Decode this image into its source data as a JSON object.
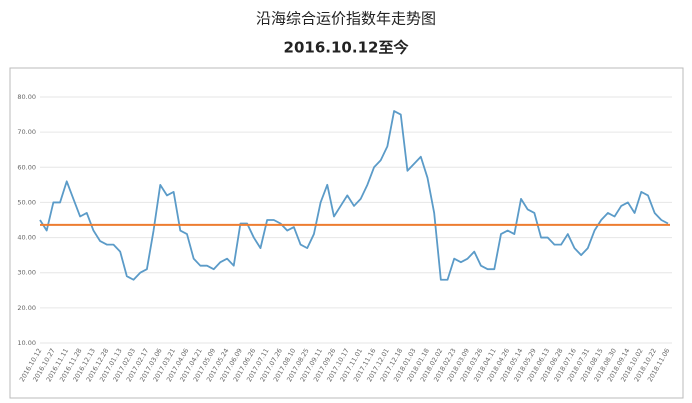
{
  "chart_data": {
    "type": "line",
    "title": "沿海综合运价指数年走势图",
    "subtitle": "2016.10.12至今",
    "categories": [
      "2016.10.12",
      null,
      "2016.10.27",
      null,
      "2016.11.11",
      null,
      "2016.11.28",
      null,
      "2016.12.13",
      null,
      "2016.12.28",
      null,
      "2017.01.13",
      null,
      "2017.02.03",
      null,
      "2017.02.17",
      null,
      "2017.03.06",
      null,
      "2017.03.21",
      null,
      "2017.04.06",
      null,
      "2017.04.21",
      null,
      "2017.05.09",
      null,
      "2017.05.24",
      null,
      "2017.06.09",
      null,
      "2017.06.26",
      null,
      "2017.07.11",
      null,
      "2017.07.26",
      null,
      "2017.08.10",
      null,
      "2017.08.25",
      null,
      "2017.09.11",
      null,
      "2017.09.26",
      null,
      "2017.10.17",
      null,
      "2017.11.01",
      null,
      "2017.11.16",
      null,
      "2017.12.01",
      null,
      "2017.12.18",
      null,
      "2018.01.03",
      null,
      "2018.01.18",
      null,
      "2018.02.02",
      null,
      "2018.02.23",
      null,
      "2018.03.09",
      null,
      "2018.03.26",
      null,
      "2018.04.11",
      null,
      "2018.04.26",
      null,
      "2018.05.14",
      null,
      "2018.05.29",
      null,
      "2018.06.13",
      null,
      "2018.06.28",
      null,
      "2018.07.16",
      null,
      "2018.07.31",
      null,
      "2018.08.15",
      null,
      "2018.08.30",
      null,
      "2018.09.14",
      null,
      "2018.10.02",
      null,
      "2018.10.22",
      null,
      "2018.11.06"
    ],
    "series": [
      {
        "name": "沿海综合运价指数",
        "color": "#5b9bc8",
        "values": [
          45,
          42,
          50,
          50,
          56,
          51,
          46,
          47,
          42,
          39,
          38,
          38,
          36,
          29,
          28,
          30,
          31,
          42,
          55,
          52,
          53,
          42,
          41,
          34,
          32,
          32,
          31,
          33,
          34,
          32,
          44,
          44,
          40,
          37,
          45,
          45,
          44,
          42,
          43,
          38,
          37,
          41,
          50,
          55,
          46,
          49,
          52,
          49,
          51,
          55,
          60,
          62,
          66,
          76,
          75,
          59,
          61,
          63,
          57,
          47,
          28,
          28,
          34,
          33,
          34,
          36,
          32,
          31,
          31,
          41,
          42,
          41,
          51,
          48,
          47,
          40,
          40,
          38,
          38,
          41,
          37,
          35,
          37,
          42,
          45,
          47,
          46,
          49,
          50,
          47,
          53,
          52,
          47,
          45,
          44
        ]
      }
    ],
    "reference_line": {
      "value": 43.6,
      "color": "#ed7d31"
    },
    "ylim": [
      10,
      80
    ],
    "yticks": [
      {
        "value": 10,
        "label": "10.00"
      },
      {
        "value": 20,
        "label": "20.00"
      },
      {
        "value": 30,
        "label": "30.00"
      },
      {
        "value": 40,
        "label": "40.00"
      },
      {
        "value": 50,
        "label": "50.00"
      },
      {
        "value": 60,
        "label": "60.00"
      },
      {
        "value": 70,
        "label": "70.00"
      },
      {
        "value": 80,
        "label": "80.00"
      }
    ],
    "grid": true
  }
}
